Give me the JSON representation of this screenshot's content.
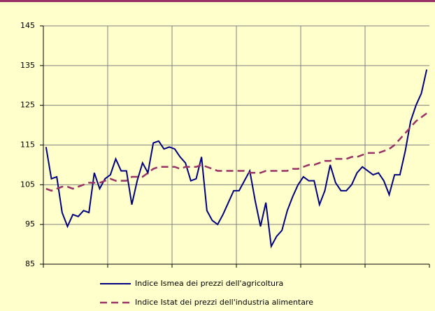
{
  "chart_data": {
    "type": "line",
    "categories": [
      null,
      null,
      null,
      null,
      null,
      null,
      null,
      null,
      null,
      null,
      null,
      null,
      null,
      null,
      null,
      null,
      null,
      null,
      null,
      null,
      null,
      null,
      null,
      null,
      null,
      null,
      null,
      null,
      null,
      null,
      null,
      null,
      null,
      null,
      null,
      null,
      null,
      null,
      null,
      null,
      null,
      null,
      null,
      null,
      null,
      null,
      null,
      null,
      null,
      null,
      null,
      null,
      null,
      null,
      null,
      null,
      null,
      null,
      null,
      null,
      null,
      null,
      null,
      null,
      null,
      null,
      null,
      null,
      null,
      null,
      null,
      null
    ],
    "series": [
      {
        "name": "Indice Ismea dei prezzi dell'agricoltura",
        "color": "#000080",
        "dash": false,
        "values": [
          114.5,
          106.5,
          107,
          98,
          94.5,
          97.5,
          97,
          98.5,
          98,
          108,
          104,
          106.5,
          107.5,
          111.5,
          108.5,
          108.5,
          100,
          106,
          110.5,
          108,
          115.5,
          116,
          114,
          114.5,
          114,
          112,
          110.5,
          106,
          106.5,
          112,
          98.5,
          96,
          95,
          97.5,
          100.5,
          103.5,
          103.5,
          106,
          108.5,
          101,
          94.5,
          100.5,
          89.5,
          92,
          93.5,
          98.5,
          102,
          105,
          107,
          106,
          106,
          100,
          103.5,
          110,
          105.5,
          103.5,
          103.5,
          105,
          108,
          109.5,
          108.5,
          107.5,
          108,
          106,
          102.5,
          107.5,
          107.5,
          113.5,
          121,
          125,
          128,
          134
        ]
      },
      {
        "name": "Indice Istat dei prezzi dell'industria alimentare",
        "color": "#993366",
        "dash": true,
        "values": [
          104,
          103.5,
          104,
          104.5,
          104.5,
          104,
          104.5,
          105,
          105.5,
          105.5,
          105.5,
          106,
          106.5,
          106,
          106,
          106,
          107,
          107,
          107,
          108,
          109,
          109.5,
          109.5,
          109.5,
          109.5,
          109,
          109.5,
          109.5,
          109.5,
          110,
          109.5,
          109,
          108.5,
          108.5,
          108.5,
          108.5,
          108.5,
          108.5,
          108,
          108,
          108,
          108.5,
          108.5,
          108.5,
          108.5,
          108.5,
          109,
          109,
          109.5,
          110,
          110,
          110.5,
          111,
          111,
          111.5,
          111.5,
          111.5,
          112,
          112,
          112.5,
          113,
          113,
          113,
          113.5,
          114,
          115,
          116.5,
          118,
          119.5,
          121,
          122,
          123
        ]
      }
    ],
    "ylim": [
      85,
      145
    ],
    "yticks": [
      85,
      95,
      105,
      115,
      125,
      135,
      145
    ],
    "grid": true
  }
}
